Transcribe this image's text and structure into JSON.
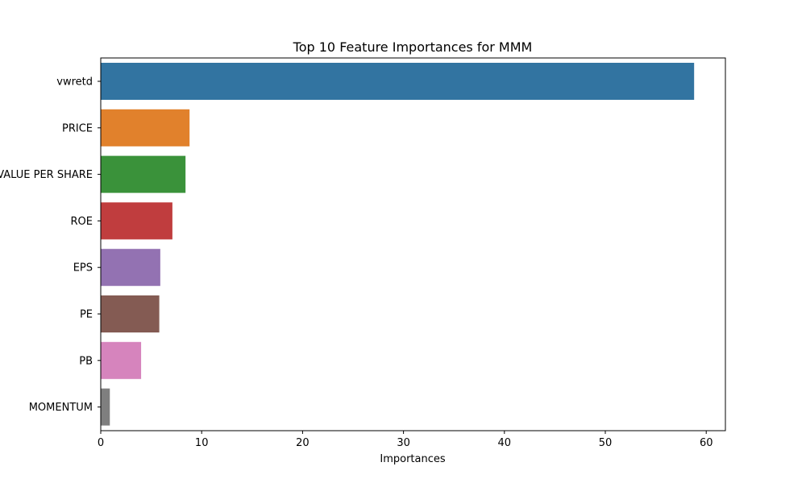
{
  "chart_data": {
    "type": "bar",
    "orientation": "horizontal",
    "title": "Top 10 Feature Importances for MMM",
    "xlabel": "Importances",
    "ylabel": "",
    "xlim": [
      0,
      61.9
    ],
    "x_ticks": [
      0,
      10,
      20,
      30,
      40,
      50,
      60
    ],
    "grid": false,
    "categories": [
      "vwretd",
      "PRICE",
      "BOOK VALUE PER SHARE",
      "ROE",
      "EPS",
      "PE",
      "PB",
      "MOMENTUM"
    ],
    "values": [
      58.8,
      8.8,
      8.4,
      7.1,
      5.9,
      5.8,
      4.0,
      0.9
    ],
    "colors": [
      "#3274a1",
      "#e1812c",
      "#3a923a",
      "#c03d3e",
      "#9372b2",
      "#845b53",
      "#d684bd",
      "#7f7f7f"
    ]
  }
}
